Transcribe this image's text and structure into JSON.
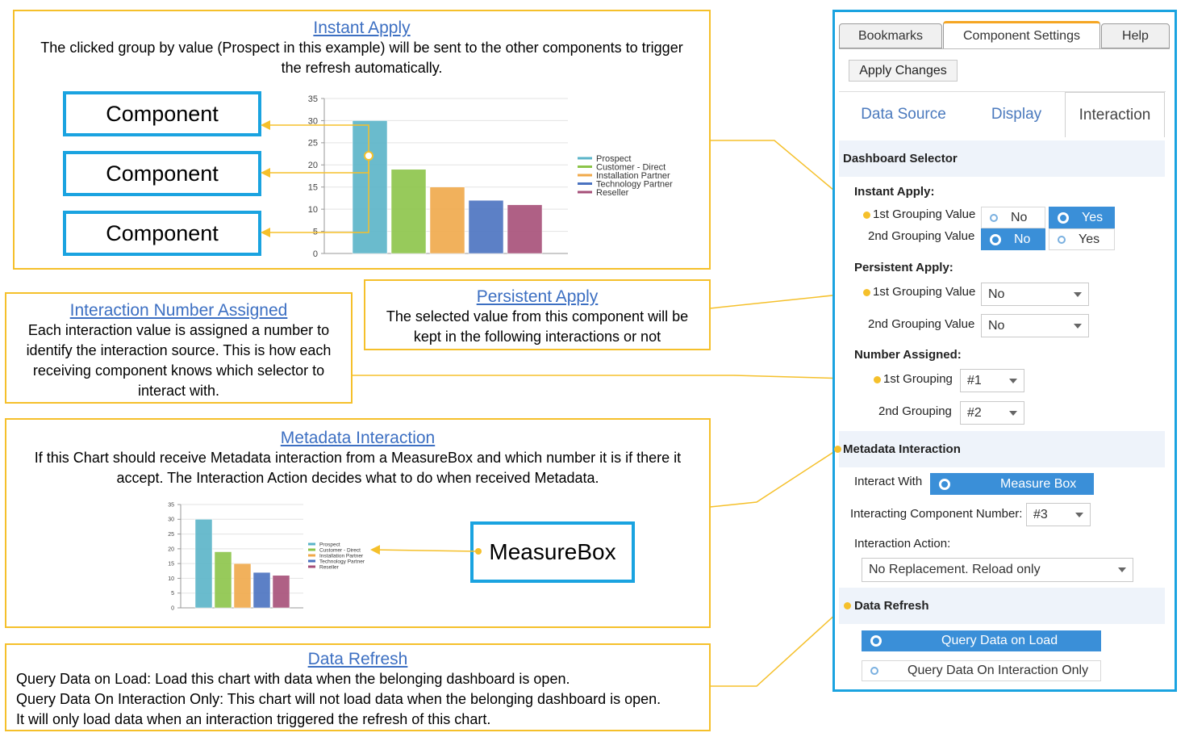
{
  "instant_apply": {
    "title": "Instant Apply",
    "text": "The clicked group by value (Prospect in this example) will be sent to the other components to trigger the refresh automatically.",
    "components": [
      "Component",
      "Component",
      "Component"
    ]
  },
  "interaction_number": {
    "title": "Interaction Number Assigned",
    "text": "Each interaction value is assigned a number to identify the interaction source. This is how each receiving component knows which selector to interact with."
  },
  "persistent_apply": {
    "title": "Persistent Apply",
    "text": "The selected value from this component will be kept in the following interactions or not"
  },
  "metadata_interaction": {
    "title": "Metadata Interaction",
    "text": "If this Chart should receive Metadata interaction from a MeasureBox and which number it is if there it accept. The Interaction Action decides what to do when received Metadata.",
    "measurebox": "MeasureBox"
  },
  "data_refresh": {
    "title": "Data Refresh",
    "lines": [
      "Query Data on Load: Load this chart with data when the belonging dashboard is open.",
      "Query Data On Interaction Only: This chart will not load data when the belonging dashboard is open.",
      "It will only load data when an interaction triggered the refresh of this chart."
    ]
  },
  "chart_data": {
    "type": "bar",
    "categories": [
      "Prospect",
      "Customer - Direct",
      "Installation Partner",
      "Technology Partner",
      "Reseller"
    ],
    "values": [
      30,
      19,
      15,
      12,
      11
    ],
    "colors": [
      "#5ab4c8",
      "#8cc449",
      "#f0a94a",
      "#4a72c0",
      "#a64f78"
    ],
    "yticks": [
      "0",
      "5",
      "10",
      "15",
      "20",
      "25",
      "30",
      "35"
    ],
    "ylim": [
      0,
      35
    ],
    "legend_position": "right",
    "grid": true
  },
  "panel": {
    "tabs": [
      "Bookmarks",
      "Component Settings",
      "Help"
    ],
    "apply_changes": "Apply Changes",
    "subtabs": [
      "Data Source",
      "Display",
      "Interaction"
    ],
    "dashboard_selector": "Dashboard Selector",
    "instant_apply_label": "Instant Apply:",
    "first_grouping_value": "1st Grouping Value",
    "second_grouping_value": "2nd Grouping Value",
    "no": "No",
    "yes": "Yes",
    "persistent_apply_label": "Persistent Apply:",
    "persistent_first_value": "No",
    "persistent_second_value": "No",
    "number_assigned_label": "Number Assigned:",
    "first_grouping": "1st Grouping",
    "second_grouping": "2nd Grouping",
    "first_grouping_number": "#1",
    "second_grouping_number": "#2",
    "metadata_interaction": "Metadata Interaction",
    "interact_with_label": "Interact With",
    "measure_box": "Measure Box",
    "interacting_component_number_label": "Interacting Component Number:",
    "interacting_component_number": "#3",
    "interaction_action_label": "Interaction Action:",
    "interaction_action": "No Replacement. Reload only",
    "data_refresh": "Data Refresh",
    "query_on_load": "Query Data on Load",
    "query_on_interaction": "Query Data On Interaction Only"
  },
  "colors": {
    "accent_yellow": "#f5c02b",
    "accent_blue": "#1aa3e0",
    "link_blue": "#3c6fc2"
  }
}
